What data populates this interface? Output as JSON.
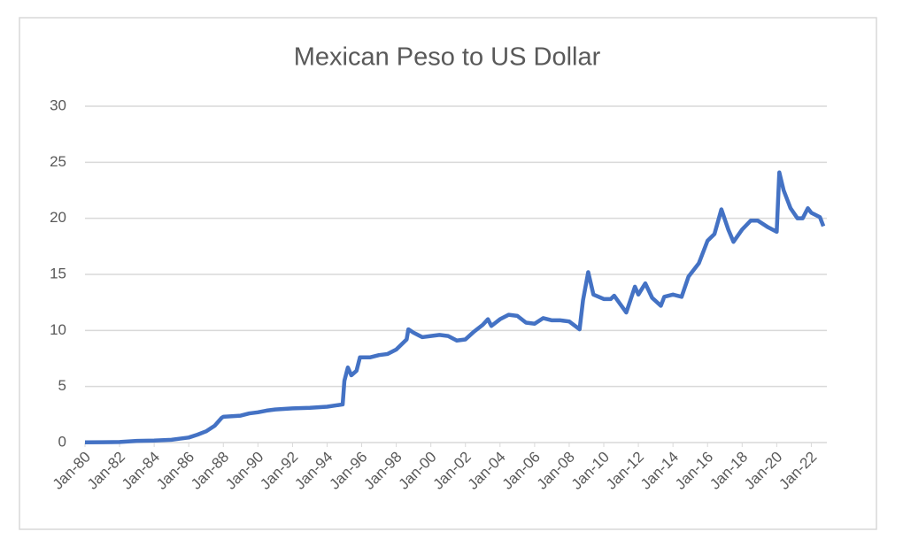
{
  "chart_data": {
    "type": "line",
    "title": "Mexican Peso  to US Dollar",
    "x": [
      1980,
      1981,
      1982,
      1983,
      1984,
      1985,
      1985.5,
      1986,
      1986.5,
      1987,
      1987.5,
      1987.9,
      1988,
      1989,
      1989.5,
      1990,
      1990.5,
      1991,
      1992,
      1993,
      1994,
      1994.9,
      1995,
      1995.2,
      1995.4,
      1995.7,
      1995.9,
      1996.5,
      1997,
      1997.5,
      1998,
      1998.6,
      1998.7,
      1999,
      1999.5,
      2000,
      2000.5,
      2001,
      2001.5,
      2002,
      2002.5,
      2003,
      2003.3,
      2003.5,
      2004,
      2004.5,
      2005,
      2005.5,
      2006,
      2006.5,
      2007,
      2007.5,
      2008,
      2008.6,
      2008.8,
      2009.1,
      2009.4,
      2010,
      2010.4,
      2010.6,
      2011.3,
      2011.8,
      2012,
      2012.4,
      2012.8,
      2013.3,
      2013.5,
      2014,
      2014.5,
      2014.9,
      2015.5,
      2016,
      2016.4,
      2016.8,
      2017.2,
      2017.5,
      2018,
      2018.5,
      2018.9,
      2019.5,
      2020,
      2020.15,
      2020.4,
      2020.8,
      2021.2,
      2021.5,
      2021.8,
      2022,
      2022.5,
      2022.7
    ],
    "series": [
      {
        "name": "Mexican Peso to US Dollar",
        "color": "#4472c4",
        "values": [
          0.02,
          0.03,
          0.05,
          0.15,
          0.18,
          0.25,
          0.35,
          0.45,
          0.7,
          1.0,
          1.5,
          2.2,
          2.3,
          2.4,
          2.6,
          2.7,
          2.85,
          2.95,
          3.05,
          3.1,
          3.2,
          3.4,
          5.5,
          6.7,
          6.0,
          6.4,
          7.6,
          7.6,
          7.8,
          7.9,
          8.3,
          9.2,
          10.1,
          9.8,
          9.4,
          9.5,
          9.6,
          9.5,
          9.1,
          9.2,
          9.9,
          10.5,
          11.0,
          10.4,
          11.0,
          11.4,
          11.3,
          10.7,
          10.6,
          11.1,
          10.9,
          10.9,
          10.8,
          10.1,
          12.7,
          15.2,
          13.2,
          12.8,
          12.8,
          13.1,
          11.6,
          13.9,
          13.2,
          14.2,
          12.9,
          12.2,
          13.0,
          13.2,
          13.0,
          14.8,
          16.0,
          18.0,
          18.6,
          20.8,
          19.0,
          17.9,
          19.0,
          19.8,
          19.8,
          19.2,
          18.8,
          24.1,
          22.5,
          20.9,
          20.0,
          20.0,
          20.9,
          20.5,
          20.1,
          19.3
        ]
      }
    ],
    "xlim": [
      1980,
      2022.9
    ],
    "xticks": [
      {
        "value": 1980,
        "label": "Jan-80"
      },
      {
        "value": 1982,
        "label": "Jan-82"
      },
      {
        "value": 1984,
        "label": "Jan-84"
      },
      {
        "value": 1986,
        "label": "Jan-86"
      },
      {
        "value": 1988,
        "label": "Jan-88"
      },
      {
        "value": 1990,
        "label": "Jan-90"
      },
      {
        "value": 1992,
        "label": "Jan-92"
      },
      {
        "value": 1994,
        "label": "Jan-94"
      },
      {
        "value": 1996,
        "label": "Jan-96"
      },
      {
        "value": 1998,
        "label": "Jan-98"
      },
      {
        "value": 2000,
        "label": "Jan-00"
      },
      {
        "value": 2002,
        "label": "Jan-02"
      },
      {
        "value": 2004,
        "label": "Jan-04"
      },
      {
        "value": 2006,
        "label": "Jan-06"
      },
      {
        "value": 2008,
        "label": "Jan-08"
      },
      {
        "value": 2010,
        "label": "Jan-10"
      },
      {
        "value": 2012,
        "label": "Jan-12"
      },
      {
        "value": 2014,
        "label": "Jan-14"
      },
      {
        "value": 2016,
        "label": "Jan-16"
      },
      {
        "value": 2018,
        "label": "Jan-18"
      },
      {
        "value": 2020,
        "label": "Jan-20"
      },
      {
        "value": 2022,
        "label": "Jan-22"
      }
    ],
    "ylim": [
      0,
      30
    ],
    "yticks": [
      0,
      5,
      10,
      15,
      20,
      25,
      30
    ],
    "grid": true
  }
}
